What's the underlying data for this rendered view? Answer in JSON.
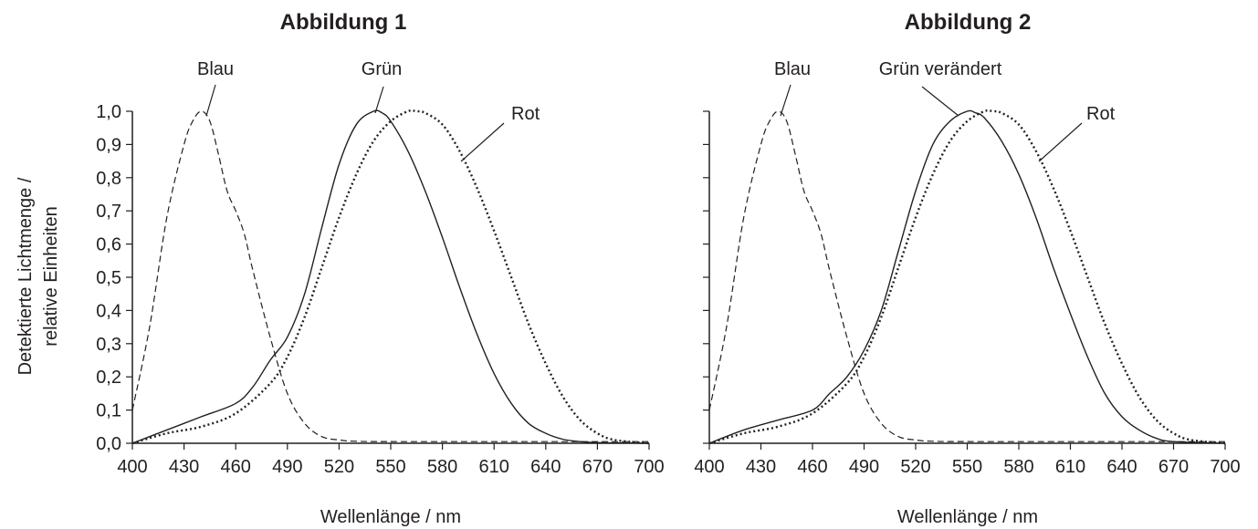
{
  "chart_data": [
    {
      "type": "line",
      "title": "Abbildung 1",
      "xlabel": "Wellenlänge / nm",
      "ylabel_lines": [
        "Detektierte Lichtmenge /",
        "relative Einheiten"
      ],
      "xlim": [
        400,
        700
      ],
      "ylim": [
        0,
        1
      ],
      "xticks": [
        400,
        430,
        460,
        490,
        520,
        550,
        580,
        610,
        640,
        670,
        700
      ],
      "yticks": [
        0,
        0.1,
        0.2,
        0.3,
        0.4,
        0.5,
        0.6,
        0.7,
        0.8,
        0.9,
        1.0
      ],
      "ytick_labels": [
        "0,0",
        "0,1",
        "0,2",
        "0,3",
        "0,4",
        "0,5",
        "0,6",
        "0,7",
        "0,8",
        "0,9",
        "1,0"
      ],
      "grid": false,
      "legend": "none",
      "series": [
        {
          "name": "Blau",
          "style": "dashed",
          "x": [
            400,
            410,
            420,
            430,
            435,
            440,
            445,
            450,
            455,
            460,
            465,
            470,
            480,
            490,
            500,
            510,
            520,
            530,
            560,
            700
          ],
          "y": [
            0.1,
            0.35,
            0.68,
            0.9,
            0.97,
            1.0,
            0.97,
            0.87,
            0.76,
            0.7,
            0.63,
            0.52,
            0.32,
            0.15,
            0.06,
            0.02,
            0.01,
            0.006,
            0.005,
            0.005
          ]
        },
        {
          "name": "Grün",
          "style": "solid",
          "x": [
            400,
            420,
            440,
            460,
            470,
            480,
            490,
            500,
            510,
            520,
            530,
            540,
            545,
            550,
            560,
            570,
            580,
            590,
            600,
            610,
            620,
            630,
            640,
            650,
            660,
            670,
            700
          ],
          "y": [
            0,
            0.04,
            0.08,
            0.12,
            0.17,
            0.25,
            0.32,
            0.45,
            0.65,
            0.84,
            0.96,
            1.0,
            0.995,
            0.97,
            0.88,
            0.76,
            0.62,
            0.47,
            0.33,
            0.21,
            0.12,
            0.06,
            0.03,
            0.012,
            0.005,
            0.002,
            0
          ]
        },
        {
          "name": "Rot",
          "style": "dotted",
          "x": [
            400,
            420,
            440,
            460,
            480,
            490,
            500,
            510,
            520,
            530,
            540,
            550,
            560,
            565,
            570,
            580,
            590,
            600,
            610,
            620,
            630,
            640,
            650,
            660,
            670,
            680,
            700
          ],
          "y": [
            0,
            0.03,
            0.05,
            0.09,
            0.18,
            0.26,
            0.38,
            0.53,
            0.68,
            0.81,
            0.91,
            0.97,
            1.0,
            1.0,
            0.995,
            0.96,
            0.88,
            0.77,
            0.64,
            0.5,
            0.36,
            0.24,
            0.14,
            0.07,
            0.03,
            0.01,
            0
          ]
        }
      ],
      "annotations": [
        {
          "text": "Blau",
          "series": 0
        },
        {
          "text": "Grün",
          "series": 1
        },
        {
          "text": "Rot",
          "series": 2
        }
      ]
    },
    {
      "type": "line",
      "title": "Abbildung 2",
      "xlabel": "Wellenlänge / nm",
      "xlim": [
        400,
        700
      ],
      "ylim": [
        0,
        1
      ],
      "xticks": [
        400,
        430,
        460,
        490,
        520,
        550,
        580,
        610,
        640,
        670,
        700
      ],
      "yticks": [
        0,
        0.1,
        0.2,
        0.3,
        0.4,
        0.5,
        0.6,
        0.7,
        0.8,
        0.9,
        1.0
      ],
      "grid": false,
      "legend": "none",
      "series": [
        {
          "name": "Blau",
          "style": "dashed",
          "x": [
            400,
            410,
            420,
            430,
            435,
            440,
            445,
            450,
            455,
            460,
            465,
            470,
            480,
            490,
            500,
            510,
            520,
            530,
            560,
            700
          ],
          "y": [
            0.1,
            0.35,
            0.68,
            0.9,
            0.97,
            1.0,
            0.97,
            0.87,
            0.76,
            0.7,
            0.63,
            0.52,
            0.32,
            0.15,
            0.06,
            0.02,
            0.01,
            0.006,
            0.005,
            0.005
          ]
        },
        {
          "name": "Grün verändert",
          "style": "solid",
          "x": [
            400,
            420,
            440,
            460,
            470,
            480,
            490,
            500,
            510,
            520,
            530,
            540,
            550,
            555,
            560,
            570,
            580,
            590,
            600,
            610,
            620,
            630,
            640,
            650,
            660,
            670,
            700
          ],
          "y": [
            0,
            0.04,
            0.07,
            0.1,
            0.15,
            0.2,
            0.28,
            0.4,
            0.58,
            0.76,
            0.9,
            0.97,
            1.0,
            0.995,
            0.98,
            0.91,
            0.81,
            0.68,
            0.53,
            0.39,
            0.26,
            0.15,
            0.08,
            0.04,
            0.015,
            0.005,
            0
          ]
        },
        {
          "name": "Rot",
          "style": "dotted",
          "x": [
            400,
            420,
            440,
            460,
            480,
            490,
            500,
            510,
            520,
            530,
            540,
            550,
            560,
            565,
            570,
            580,
            590,
            600,
            610,
            620,
            630,
            640,
            650,
            660,
            670,
            680,
            700
          ],
          "y": [
            0,
            0.03,
            0.05,
            0.09,
            0.18,
            0.26,
            0.38,
            0.53,
            0.68,
            0.81,
            0.91,
            0.97,
            1.0,
            1.0,
            0.995,
            0.96,
            0.88,
            0.77,
            0.64,
            0.5,
            0.36,
            0.24,
            0.14,
            0.07,
            0.03,
            0.01,
            0
          ]
        }
      ],
      "annotations": [
        {
          "text": "Blau",
          "series": 0
        },
        {
          "text": "Grün verändert",
          "series": 1
        },
        {
          "text": "Rot",
          "series": 2
        }
      ]
    }
  ]
}
